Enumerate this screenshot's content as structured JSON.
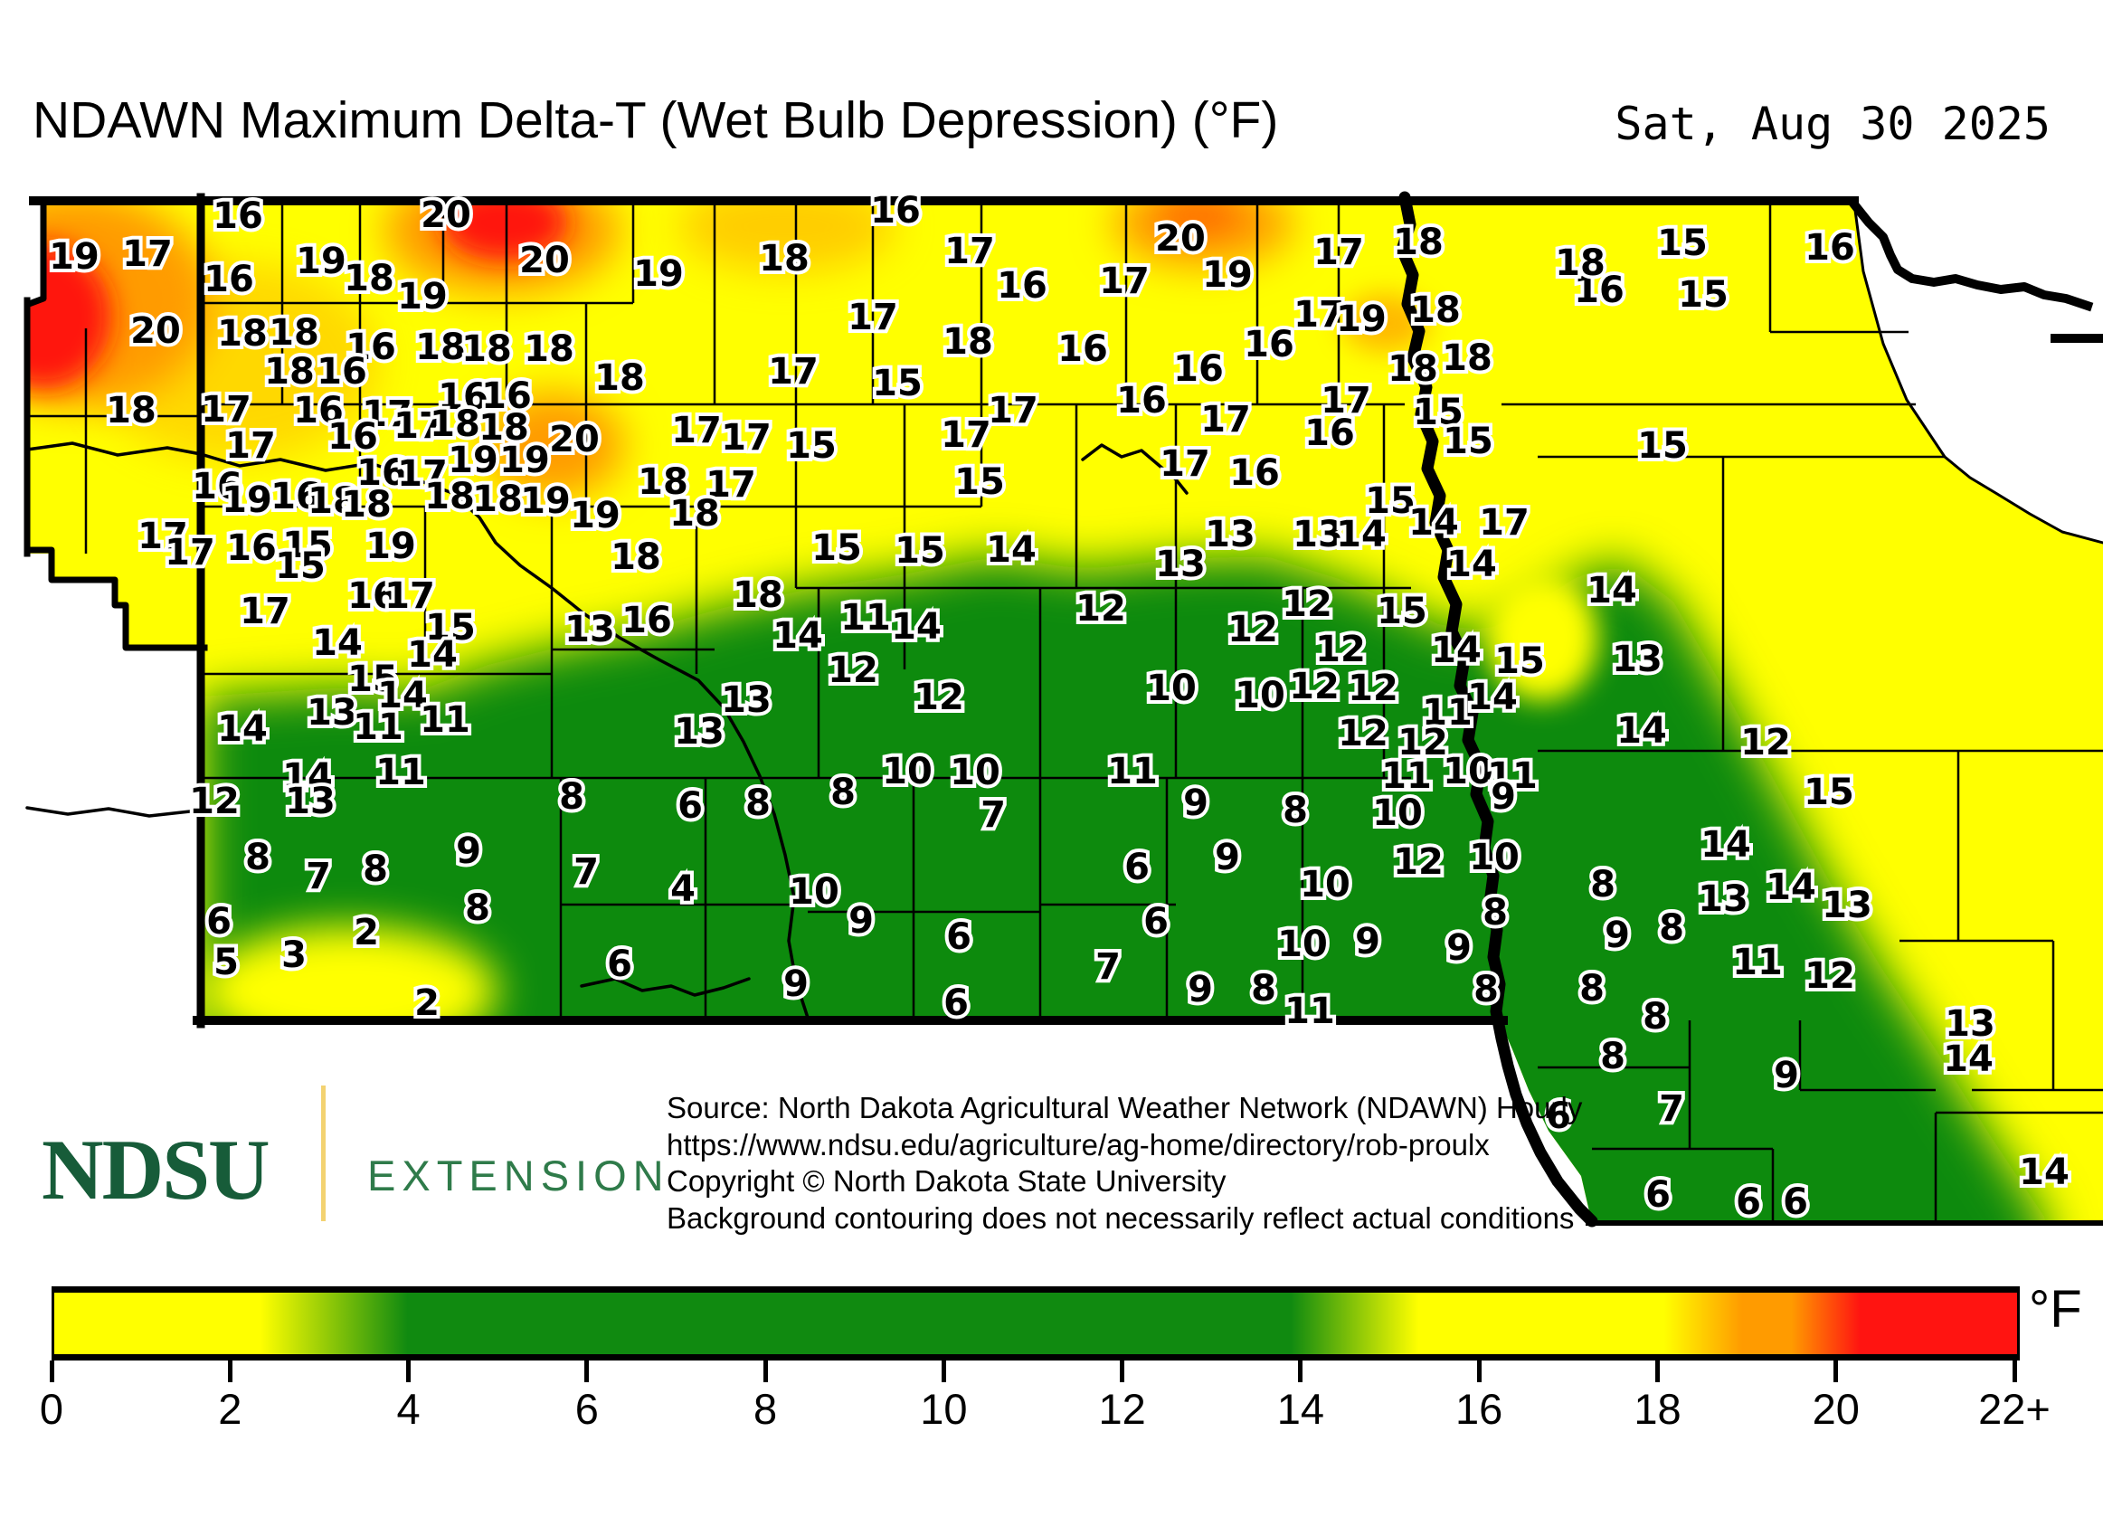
{
  "title": "NDAWN Maximum Delta-T (Wet Bulb Depression) (°F)",
  "date": "Sat, Aug 30 2025",
  "footer": {
    "logo_primary": "NDSU",
    "logo_secondary": "EXTENSION",
    "source_lines": [
      "Source: North Dakota Agricultural Weather Network (NDAWN) Hourly",
      "https://www.ndsu.edu/agriculture/ag-home/directory/rob-proulx",
      "Copyright © North Dakota State University",
      "Background contouring does not necessarily reflect actual conditions"
    ]
  },
  "legend": {
    "unit": "°F",
    "tick_labels": [
      "0",
      "2",
      "4",
      "6",
      "8",
      "10",
      "12",
      "14",
      "16",
      "18",
      "20",
      "22+"
    ],
    "colors": {
      "low_yellow": "#ffff00",
      "green": "#108a10",
      "yellow": "#ffff00",
      "orange": "#ff9b00",
      "red": "#ff1411"
    },
    "range_min": 0,
    "range_max": "22+"
  },
  "map": {
    "unit": "°F",
    "stations": [
      [
        16,
        263,
        238
      ],
      [
        20,
        493,
        237
      ],
      [
        19,
        82,
        283
      ],
      [
        17,
        163,
        280
      ],
      [
        19,
        355,
        288
      ],
      [
        16,
        253,
        308
      ],
      [
        18,
        408,
        307
      ],
      [
        20,
        602,
        287
      ],
      [
        19,
        467,
        327
      ],
      [
        20,
        172,
        365
      ],
      [
        18,
        268,
        368
      ],
      [
        18,
        325,
        367
      ],
      [
        16,
        410,
        383
      ],
      [
        18,
        487,
        383
      ],
      [
        18,
        538,
        385
      ],
      [
        18,
        607,
        385
      ],
      [
        18,
        685,
        417
      ],
      [
        18,
        320,
        410
      ],
      [
        16,
        378,
        410
      ],
      [
        18,
        145,
        453
      ],
      [
        17,
        250,
        452
      ],
      [
        16,
        352,
        453
      ],
      [
        17,
        428,
        457
      ],
      [
        16,
        512,
        438
      ],
      [
        16,
        560,
        437
      ],
      [
        17,
        463,
        470
      ],
      [
        18,
        503,
        468
      ],
      [
        18,
        557,
        472
      ],
      [
        17,
        277,
        492
      ],
      [
        16,
        390,
        482
      ],
      [
        19,
        523,
        508
      ],
      [
        19,
        580,
        508
      ],
      [
        20,
        635,
        485
      ],
      [
        16,
        240,
        537
      ],
      [
        19,
        273,
        552
      ],
      [
        16,
        327,
        548
      ],
      [
        16,
        422,
        522
      ],
      [
        17,
        467,
        523
      ],
      [
        18,
        368,
        553
      ],
      [
        18,
        405,
        557
      ],
      [
        18,
        497,
        548
      ],
      [
        18,
        550,
        551
      ],
      [
        19,
        603,
        553
      ],
      [
        17,
        180,
        592
      ],
      [
        17,
        210,
        610
      ],
      [
        16,
        278,
        605
      ],
      [
        15,
        340,
        602
      ],
      [
        15,
        332,
        625
      ],
      [
        19,
        432,
        603
      ],
      [
        16,
        412,
        658
      ],
      [
        17,
        453,
        658
      ],
      [
        17,
        293,
        675
      ],
      [
        15,
        498,
        693
      ],
      [
        14,
        373,
        710
      ],
      [
        14,
        478,
        723
      ],
      [
        15,
        412,
        750
      ],
      [
        14,
        445,
        768
      ],
      [
        13,
        367,
        787
      ],
      [
        11,
        418,
        803
      ],
      [
        11,
        492,
        795
      ],
      [
        14,
        268,
        805
      ],
      [
        14,
        340,
        858
      ],
      [
        13,
        343,
        885
      ],
      [
        12,
        237,
        885
      ],
      [
        11,
        443,
        853
      ],
      [
        8,
        285,
        947
      ],
      [
        7,
        352,
        968
      ],
      [
        8,
        415,
        960
      ],
      [
        9,
        518,
        940
      ],
      [
        8,
        528,
        1003
      ],
      [
        6,
        242,
        1018
      ],
      [
        2,
        405,
        1030
      ],
      [
        5,
        250,
        1063
      ],
      [
        3,
        325,
        1055
      ],
      [
        2,
        472,
        1108
      ],
      [
        16,
        990,
        232
      ],
      [
        17,
        1072,
        277
      ],
      [
        19,
        728,
        302
      ],
      [
        18,
        867,
        285
      ],
      [
        17,
        965,
        350
      ],
      [
        18,
        1070,
        377
      ],
      [
        17,
        877,
        410
      ],
      [
        15,
        992,
        423
      ],
      [
        17,
        770,
        475
      ],
      [
        17,
        825,
        483
      ],
      [
        15,
        897,
        492
      ],
      [
        17,
        1068,
        480
      ],
      [
        18,
        733,
        532
      ],
      [
        17,
        808,
        535
      ],
      [
        15,
        1083,
        532
      ],
      [
        19,
        658,
        569
      ],
      [
        18,
        768,
        567
      ],
      [
        18,
        703,
        615
      ],
      [
        16,
        1130,
        315
      ],
      [
        16,
        1197,
        385
      ],
      [
        17,
        1120,
        453
      ],
      [
        20,
        1305,
        263
      ],
      [
        17,
        1480,
        278
      ],
      [
        18,
        1568,
        267
      ],
      [
        17,
        1243,
        310
      ],
      [
        19,
        1357,
        303
      ],
      [
        18,
        1587,
        342
      ],
      [
        17,
        1458,
        347
      ],
      [
        19,
        1505,
        352
      ],
      [
        16,
        1403,
        380
      ],
      [
        16,
        1325,
        407
      ],
      [
        18,
        1562,
        407
      ],
      [
        18,
        1622,
        395
      ],
      [
        16,
        1262,
        442
      ],
      [
        17,
        1488,
        442
      ],
      [
        15,
        1590,
        455
      ],
      [
        17,
        1355,
        463
      ],
      [
        16,
        1470,
        478
      ],
      [
        15,
        1623,
        487
      ],
      [
        17,
        1310,
        512
      ],
      [
        16,
        1387,
        522
      ],
      [
        15,
        1537,
        553
      ],
      [
        14,
        1585,
        577
      ],
      [
        17,
        1663,
        577
      ],
      [
        13,
        1360,
        590
      ],
      [
        13,
        1457,
        590
      ],
      [
        14,
        1505,
        590
      ],
      [
        15,
        1860,
        268
      ],
      [
        16,
        2023,
        273
      ],
      [
        16,
        1768,
        320
      ],
      [
        18,
        1747,
        290
      ],
      [
        15,
        1883,
        325
      ],
      [
        15,
        1838,
        492
      ],
      [
        13,
        1305,
        623
      ],
      [
        14,
        1627,
        623
      ],
      [
        12,
        1217,
        672
      ],
      [
        12,
        1445,
        667
      ],
      [
        15,
        1550,
        675
      ],
      [
        12,
        1385,
        695
      ],
      [
        12,
        1482,
        717
      ],
      [
        14,
        1610,
        718
      ],
      [
        15,
        1680,
        730
      ],
      [
        10,
        1295,
        760
      ],
      [
        12,
        1453,
        758
      ],
      [
        12,
        1518,
        760
      ],
      [
        10,
        1393,
        768
      ],
      [
        14,
        1650,
        770
      ],
      [
        11,
        1600,
        787
      ],
      [
        12,
        1507,
        810
      ],
      [
        12,
        1573,
        820
      ],
      [
        11,
        1252,
        852
      ],
      [
        11,
        1555,
        857
      ],
      [
        10,
        1623,
        852
      ],
      [
        11,
        1672,
        857
      ],
      [
        9,
        1662,
        880
      ],
      [
        9,
        1322,
        887
      ],
      [
        8,
        1432,
        895
      ],
      [
        10,
        1545,
        898
      ],
      [
        6,
        1257,
        958
      ],
      [
        9,
        1357,
        947
      ],
      [
        12,
        1568,
        952
      ],
      [
        10,
        1652,
        947
      ],
      [
        10,
        1465,
        977
      ],
      [
        14,
        1782,
        652
      ],
      [
        13,
        1810,
        728
      ],
      [
        14,
        1815,
        807
      ],
      [
        12,
        1952,
        820
      ],
      [
        15,
        2022,
        875
      ],
      [
        14,
        1908,
        933
      ],
      [
        14,
        1980,
        980
      ],
      [
        18,
        838,
        657
      ],
      [
        15,
        925,
        605
      ],
      [
        15,
        1017,
        608
      ],
      [
        14,
        1118,
        607
      ],
      [
        13,
        652,
        695
      ],
      [
        16,
        715,
        685
      ],
      [
        14,
        882,
        702
      ],
      [
        11,
        957,
        682
      ],
      [
        14,
        1013,
        692
      ],
      [
        12,
        943,
        740
      ],
      [
        13,
        825,
        773
      ],
      [
        12,
        1038,
        770
      ],
      [
        13,
        773,
        808
      ],
      [
        10,
        1003,
        852
      ],
      [
        10,
        1078,
        853
      ],
      [
        8,
        632,
        880
      ],
      [
        8,
        932,
        875
      ],
      [
        6,
        763,
        890
      ],
      [
        8,
        838,
        887
      ],
      [
        7,
        1098,
        900
      ],
      [
        7,
        648,
        963
      ],
      [
        4,
        755,
        982
      ],
      [
        10,
        900,
        985
      ],
      [
        9,
        952,
        1017
      ],
      [
        6,
        1060,
        1035
      ],
      [
        6,
        685,
        1065
      ],
      [
        9,
        880,
        1087
      ],
      [
        6,
        1057,
        1108
      ],
      [
        6,
        1278,
        1018
      ],
      [
        7,
        1225,
        1068
      ],
      [
        10,
        1440,
        1043
      ],
      [
        9,
        1512,
        1040
      ],
      [
        9,
        1613,
        1047
      ],
      [
        9,
        1327,
        1093
      ],
      [
        8,
        1397,
        1092
      ],
      [
        11,
        1448,
        1117
      ],
      [
        8,
        1643,
        1093
      ],
      [
        8,
        1760,
        1092
      ],
      [
        8,
        1653,
        1008
      ],
      [
        8,
        1772,
        977
      ],
      [
        13,
        1905,
        993
      ],
      [
        13,
        2042,
        1000
      ],
      [
        9,
        1788,
        1033
      ],
      [
        8,
        1848,
        1025
      ],
      [
        11,
        1943,
        1063
      ],
      [
        12,
        2023,
        1078
      ],
      [
        8,
        1830,
        1123
      ],
      [
        8,
        1783,
        1167
      ],
      [
        13,
        2178,
        1131
      ],
      [
        14,
        2176,
        1170
      ],
      [
        9,
        1975,
        1188
      ],
      [
        7,
        1848,
        1225
      ],
      [
        14,
        2260,
        1295
      ],
      [
        6,
        1833,
        1320
      ],
      [
        6,
        1933,
        1328
      ],
      [
        6,
        1985,
        1328
      ],
      [
        6,
        1723,
        1233
      ]
    ]
  }
}
